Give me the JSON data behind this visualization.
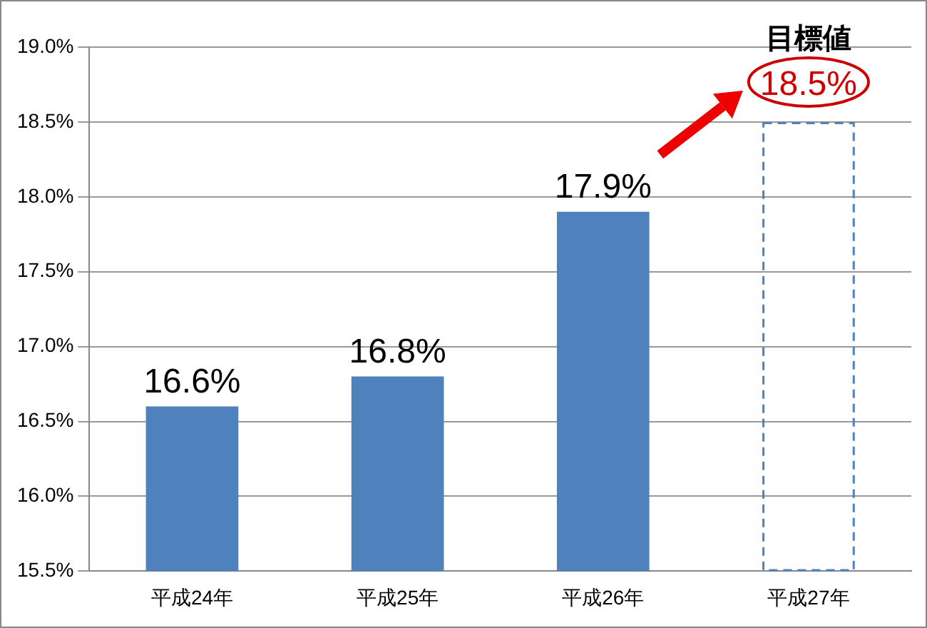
{
  "chart_data": {
    "type": "bar",
    "categories": [
      "平成24年",
      "平成25年",
      "平成26年",
      "平成27年"
    ],
    "series": [
      {
        "color": "#4f81bd",
        "values": [
          16.6,
          16.8,
          17.9,
          null
        ],
        "value_labels": [
          "16.6%",
          "16.8%",
          "17.9%",
          null
        ]
      },
      {
        "color": "#4f81bd",
        "line_style": "dashed",
        "values": [
          null,
          null,
          null,
          18.5
        ],
        "value_labels": [
          null,
          null,
          null,
          "18.5%"
        ]
      }
    ],
    "ylim": [
      15.5,
      19.0
    ],
    "yticks": [
      {
        "value": 15.5,
        "label": "15.5%"
      },
      {
        "value": 16.0,
        "label": "16.0%"
      },
      {
        "value": 16.5,
        "label": "16.5%"
      },
      {
        "value": 17.0,
        "label": "17.0%"
      },
      {
        "value": 17.5,
        "label": "17.5%"
      },
      {
        "value": 18.0,
        "label": "18.0%"
      },
      {
        "value": 18.5,
        "label": "18.5%"
      },
      {
        "value": 19.0,
        "label": "19.0%"
      }
    ],
    "grid": "y",
    "legend": false,
    "annotations": [
      "目標値"
    ]
  }
}
